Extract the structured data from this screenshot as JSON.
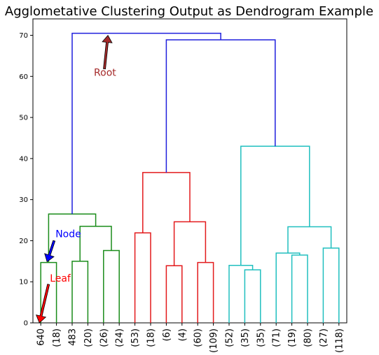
{
  "chart_data": {
    "type": "dendrogram",
    "title": "Agglometative Clustering Output as Dendrogram Example",
    "ylim": [
      0,
      74
    ],
    "yticks": [
      0,
      10,
      20,
      30,
      40,
      50,
      60,
      70
    ],
    "leaf_labels": [
      "640",
      "(18)",
      "483",
      "(20)",
      "(26)",
      "(24)",
      "(53)",
      "(18)",
      "(6)",
      "(4)",
      "(60)",
      "(109)",
      "(52)",
      "(35)",
      "(35)",
      "(71)",
      "(19)",
      "(80)",
      "(27)",
      "(118)"
    ],
    "colors": {
      "root": "#1f1fdd",
      "green": "#1a8c1a",
      "red": "#e31a1c",
      "cyan": "#20bfbf"
    },
    "links": [
      {
        "left": 0,
        "right": 1,
        "height": 14.7,
        "color": "green"
      },
      {
        "left": 2,
        "right": 3,
        "height": 15.0,
        "color": "green"
      },
      {
        "left": 4,
        "right": 5,
        "height": 17.6,
        "color": "green"
      },
      {
        "left": "2-3",
        "right": "4-5",
        "height": 23.5,
        "color": "green"
      },
      {
        "left": "0-1",
        "right": "2-5",
        "height": 26.5,
        "color": "green"
      },
      {
        "left": 6,
        "right": 7,
        "height": 21.9,
        "color": "red"
      },
      {
        "left": 8,
        "right": 9,
        "height": 13.9,
        "color": "red"
      },
      {
        "left": 10,
        "right": 11,
        "height": 14.7,
        "color": "red"
      },
      {
        "left": "8-9",
        "right": "10-11",
        "height": 24.6,
        "color": "red"
      },
      {
        "left": "6-7",
        "right": "8-11",
        "height": 36.6,
        "color": "red"
      },
      {
        "left": 13,
        "right": 14,
        "height": 12.9,
        "color": "cyan"
      },
      {
        "left": 12,
        "right": "13-14",
        "height": 14.0,
        "color": "cyan"
      },
      {
        "left": 16,
        "right": 17,
        "height": 16.5,
        "color": "cyan"
      },
      {
        "left": 15,
        "right": "16-17",
        "height": 17.0,
        "color": "cyan"
      },
      {
        "left": 18,
        "right": 19,
        "height": 18.2,
        "color": "cyan"
      },
      {
        "left": "15-17",
        "right": "18-19",
        "height": 23.4,
        "color": "cyan"
      },
      {
        "left": "12-14",
        "right": "15-19",
        "height": 43.0,
        "color": "cyan"
      },
      {
        "left": "6-11",
        "right": "12-19",
        "height": 68.9,
        "color": "root"
      },
      {
        "left": "0-5",
        "right": "6-19",
        "height": 70.5,
        "color": "root"
      }
    ],
    "annotations": [
      {
        "text": "Root",
        "color": "#a52a2a",
        "arrow_color": "#a52a2a"
      },
      {
        "text": "Node",
        "color": "#0000ff",
        "arrow_color": "#0000ff"
      },
      {
        "text": "Leaf",
        "color": "#ff0000",
        "arrow_color": "#ff0000"
      }
    ]
  }
}
